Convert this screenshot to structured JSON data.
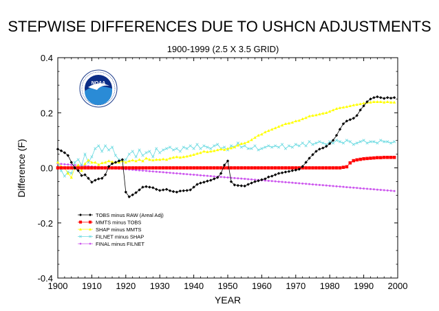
{
  "chart_data": {
    "type": "line",
    "title": "STEPWISE DIFFERENCES DUE TO USHCN ADJUSTMENTS",
    "subtitle": "1900-1999 (2.5 X 3.5 GRID)",
    "xlabel": "YEAR",
    "ylabel": "Difference (F)",
    "xlim": [
      1900,
      2000
    ],
    "ylim": [
      -0.4,
      0.4
    ],
    "x_ticks": [
      1900,
      1910,
      1920,
      1930,
      1940,
      1950,
      1960,
      1970,
      1980,
      1990,
      2000
    ],
    "x_tick_labels": [
      "1900",
      "1910",
      "1920",
      "1930",
      "1940",
      "1950",
      "1960",
      "1970",
      "1980",
      "1990",
      "2000"
    ],
    "y_ticks": [
      -0.4,
      -0.2,
      0.0,
      0.2,
      0.4
    ],
    "y_tick_labels": [
      "-0.4",
      "-0.2",
      "0.0",
      "0.2",
      "0.4"
    ],
    "legend_placement": "lower-left",
    "logo_label": "NOAA",
    "x": [
      1900,
      1901,
      1902,
      1903,
      1904,
      1905,
      1906,
      1907,
      1908,
      1909,
      1910,
      1911,
      1912,
      1913,
      1914,
      1915,
      1916,
      1917,
      1918,
      1919,
      1920,
      1921,
      1922,
      1923,
      1924,
      1925,
      1926,
      1927,
      1928,
      1929,
      1930,
      1931,
      1932,
      1933,
      1934,
      1935,
      1936,
      1937,
      1938,
      1939,
      1940,
      1941,
      1942,
      1943,
      1944,
      1945,
      1946,
      1947,
      1948,
      1949,
      1950,
      1951,
      1952,
      1953,
      1954,
      1955,
      1956,
      1957,
      1958,
      1959,
      1960,
      1961,
      1962,
      1963,
      1964,
      1965,
      1966,
      1967,
      1968,
      1969,
      1970,
      1971,
      1972,
      1973,
      1974,
      1975,
      1976,
      1977,
      1978,
      1979,
      1980,
      1981,
      1982,
      1983,
      1984,
      1985,
      1986,
      1987,
      1988,
      1989,
      1990,
      1991,
      1992,
      1993,
      1994,
      1995,
      1996,
      1997,
      1998,
      1999
    ],
    "series": [
      {
        "name": "TOBS minus RAW (Areal Adj)",
        "color": "#000000",
        "marker": "diamond",
        "values": [
          0.068,
          0.062,
          0.055,
          0.045,
          0.02,
          0.0,
          -0.01,
          -0.028,
          -0.025,
          -0.038,
          -0.052,
          -0.045,
          -0.04,
          -0.038,
          -0.025,
          0.005,
          0.015,
          0.02,
          0.025,
          0.03,
          -0.088,
          -0.105,
          -0.098,
          -0.09,
          -0.08,
          -0.07,
          -0.068,
          -0.07,
          -0.072,
          -0.078,
          -0.082,
          -0.08,
          -0.078,
          -0.083,
          -0.086,
          -0.088,
          -0.084,
          -0.083,
          -0.082,
          -0.08,
          -0.07,
          -0.06,
          -0.055,
          -0.052,
          -0.048,
          -0.045,
          -0.04,
          -0.035,
          -0.02,
          0.01,
          0.025,
          -0.05,
          -0.062,
          -0.064,
          -0.065,
          -0.066,
          -0.06,
          -0.055,
          -0.05,
          -0.047,
          -0.043,
          -0.04,
          -0.033,
          -0.03,
          -0.025,
          -0.02,
          -0.018,
          -0.015,
          -0.013,
          -0.01,
          -0.008,
          -0.005,
          0.005,
          0.02,
          0.035,
          0.048,
          0.06,
          0.068,
          0.072,
          0.078,
          0.088,
          0.1,
          0.118,
          0.14,
          0.16,
          0.17,
          0.175,
          0.18,
          0.19,
          0.21,
          0.225,
          0.24,
          0.25,
          0.255,
          0.258,
          0.255,
          0.252,
          0.255,
          0.253,
          0.255
        ]
      },
      {
        "name": "MMTS minus TOBS",
        "color": "#ff0000",
        "marker": "square",
        "values": [
          0,
          0,
          0,
          0,
          0,
          0,
          0,
          0,
          0,
          0,
          0,
          0,
          0,
          0,
          0,
          0,
          0,
          0,
          0,
          0,
          0,
          0,
          0,
          0,
          0,
          0,
          0,
          0,
          0,
          0,
          0,
          0,
          0,
          0,
          0,
          0,
          0,
          0,
          0,
          0,
          0,
          0,
          0,
          0,
          0,
          0,
          0,
          0,
          0,
          0,
          0,
          0,
          0,
          0,
          0,
          0,
          0,
          0,
          0,
          0,
          0,
          0,
          0,
          0,
          0,
          0,
          0,
          0,
          0,
          0,
          0,
          0,
          0,
          0,
          0,
          0,
          0,
          0,
          0,
          0,
          0,
          0,
          0,
          0,
          0.002,
          0.004,
          0.018,
          0.026,
          0.029,
          0.031,
          0.033,
          0.034,
          0.035,
          0.036,
          0.037,
          0.037,
          0.038,
          0.038,
          0.038,
          0.038
        ]
      },
      {
        "name": "SHAP minus MMTS",
        "color": "#ffff00",
        "marker": "triangle",
        "values": [
          0.02,
          0.005,
          0.0,
          -0.02,
          -0.035,
          0.0,
          0.01,
          -0.01,
          0.015,
          0.028,
          0.02,
          0.02,
          0.012,
          0.018,
          0.02,
          0.025,
          0.022,
          0.02,
          0.02,
          0.025,
          0.02,
          0.025,
          0.028,
          0.025,
          0.03,
          0.025,
          0.035,
          0.03,
          0.028,
          0.03,
          0.03,
          0.032,
          0.03,
          0.035,
          0.038,
          0.04,
          0.038,
          0.04,
          0.042,
          0.045,
          0.048,
          0.052,
          0.055,
          0.06,
          0.058,
          0.06,
          0.062,
          0.065,
          0.068,
          0.066,
          0.07,
          0.072,
          0.076,
          0.082,
          0.088,
          0.09,
          0.095,
          0.102,
          0.11,
          0.118,
          0.122,
          0.13,
          0.135,
          0.14,
          0.145,
          0.15,
          0.155,
          0.16,
          0.162,
          0.165,
          0.17,
          0.172,
          0.178,
          0.182,
          0.188,
          0.19,
          0.192,
          0.195,
          0.198,
          0.2,
          0.205,
          0.21,
          0.215,
          0.218,
          0.22,
          0.222,
          0.225,
          0.228,
          0.23,
          0.232,
          0.235,
          0.237,
          0.238,
          0.24,
          0.24,
          0.24,
          0.238,
          0.24,
          0.238,
          0.238
        ]
      },
      {
        "name": "FILNET minus SHAP",
        "color": "#66d9e0",
        "marker": "x",
        "values": [
          0.02,
          -0.01,
          -0.03,
          -0.015,
          -0.02,
          0.02,
          0.03,
          0.01,
          0.05,
          0.02,
          0.04,
          0.07,
          0.08,
          0.06,
          0.08,
          0.065,
          0.075,
          0.045,
          0.03,
          0.025,
          0.03,
          0.05,
          0.06,
          0.04,
          0.065,
          0.045,
          0.055,
          0.06,
          0.04,
          0.07,
          0.055,
          0.065,
          0.07,
          0.075,
          0.065,
          0.07,
          0.06,
          0.075,
          0.07,
          0.08,
          0.07,
          0.085,
          0.07,
          0.08,
          0.075,
          0.07,
          0.08,
          0.085,
          0.07,
          0.075,
          0.065,
          0.08,
          0.075,
          0.09,
          0.075,
          0.08,
          0.07,
          0.07,
          0.08,
          0.065,
          0.07,
          0.075,
          0.08,
          0.075,
          0.08,
          0.075,
          0.085,
          0.07,
          0.08,
          0.075,
          0.085,
          0.08,
          0.09,
          0.08,
          0.095,
          0.085,
          0.09,
          0.095,
          0.09,
          0.085,
          0.095,
          0.09,
          0.1,
          0.095,
          0.09,
          0.1,
          0.095,
          0.085,
          0.09,
          0.095,
          0.1,
          0.09,
          0.095,
          0.095,
          0.09,
          0.1,
          0.095,
          0.095,
          0.09,
          0.095
        ]
      },
      {
        "name": "FINAL minus FILNET",
        "color": "#cc55ee",
        "marker": "dot",
        "values": [
          0.015,
          0.014,
          0.013,
          0.012,
          0.011,
          0.01,
          0.009,
          0.008,
          0.007,
          0.006,
          0.005,
          0.004,
          0.003,
          0.002,
          0.001,
          0.0,
          -0.001,
          -0.002,
          -0.003,
          -0.004,
          -0.005,
          -0.006,
          -0.007,
          -0.008,
          -0.009,
          -0.01,
          -0.011,
          -0.012,
          -0.013,
          -0.014,
          -0.015,
          -0.016,
          -0.017,
          -0.018,
          -0.019,
          -0.02,
          -0.021,
          -0.022,
          -0.023,
          -0.024,
          -0.025,
          -0.026,
          -0.027,
          -0.028,
          -0.029,
          -0.03,
          -0.031,
          -0.032,
          -0.033,
          -0.034,
          -0.035,
          -0.036,
          -0.037,
          -0.038,
          -0.039,
          -0.04,
          -0.041,
          -0.042,
          -0.043,
          -0.044,
          -0.045,
          -0.046,
          -0.047,
          -0.048,
          -0.049,
          -0.05,
          -0.051,
          -0.052,
          -0.053,
          -0.054,
          -0.055,
          -0.056,
          -0.057,
          -0.058,
          -0.059,
          -0.06,
          -0.061,
          -0.062,
          -0.063,
          -0.064,
          -0.065,
          -0.066,
          -0.067,
          -0.068,
          -0.069,
          -0.07,
          -0.071,
          -0.072,
          -0.073,
          -0.074,
          -0.075,
          -0.076,
          -0.077,
          -0.078,
          -0.079,
          -0.08,
          -0.081,
          -0.082,
          -0.083,
          -0.084
        ]
      }
    ]
  }
}
